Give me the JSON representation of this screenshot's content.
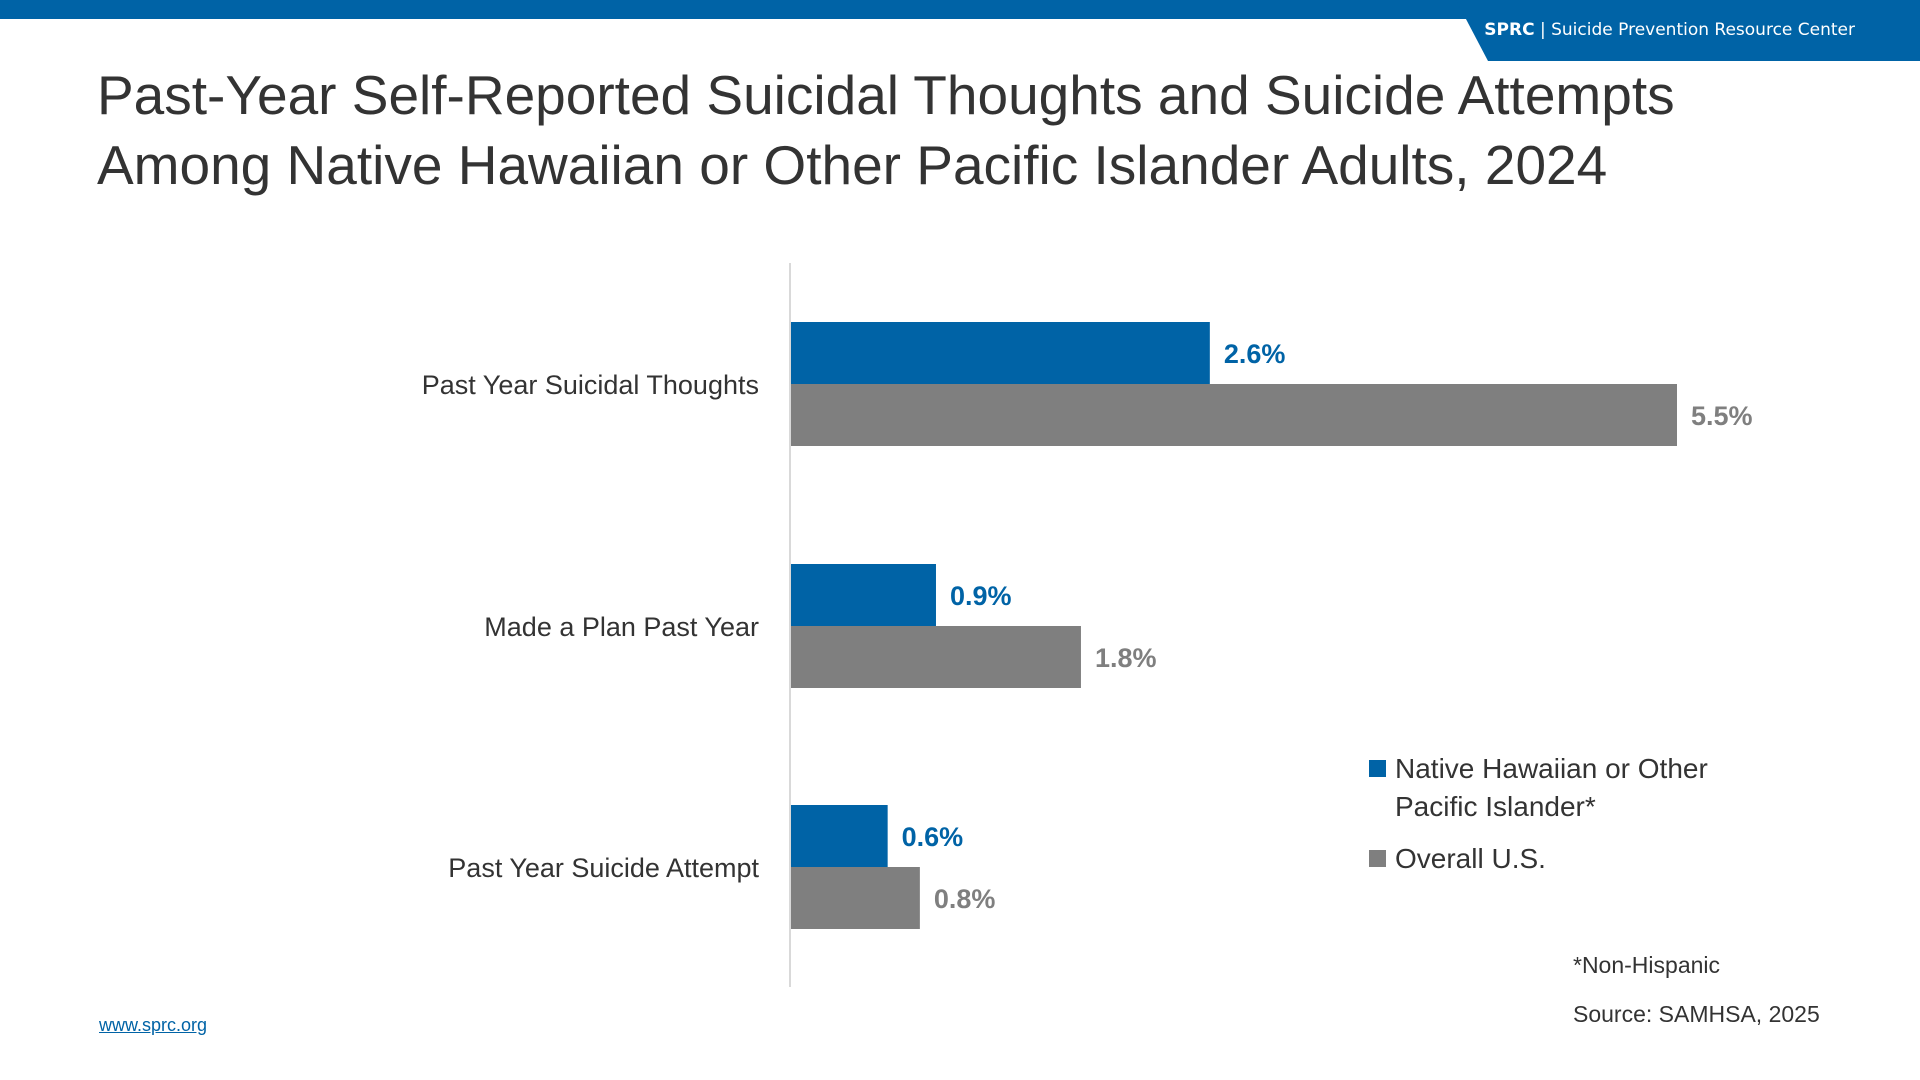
{
  "header": {
    "brand_short": "SPRC",
    "separator": "|",
    "brand_full": "Suicide Prevention Resource Center"
  },
  "title_line1": "Past-Year Self-Reported Suicidal Thoughts and Suicide Attempts",
  "title_line2": "Among Native Hawaiian or Other Pacific Islander Adults, 2024",
  "colors": {
    "nhopi": "#0063a6",
    "overall": "#7f7f7f"
  },
  "chart_data": {
    "type": "bar",
    "orientation": "horizontal",
    "title": "Past-Year Self-Reported Suicidal Thoughts and Suicide Attempts Among Native Hawaiian or Other Pacific Islander Adults, 2024",
    "categories": [
      "Past Year Suicidal Thoughts",
      "Made a Plan Past Year",
      "Past Year Suicide Attempt"
    ],
    "series": [
      {
        "name": "Native Hawaiian or Other Pacific Islander*",
        "values": [
          2.6,
          0.9,
          0.6
        ],
        "labels": [
          "2.6%",
          "0.9%",
          "0.6%"
        ]
      },
      {
        "name": "Overall U.S.",
        "values": [
          5.5,
          1.8,
          0.8
        ],
        "labels": [
          "5.5%",
          "1.8%",
          "0.8%"
        ]
      }
    ],
    "xlim": [
      0,
      5.5
    ],
    "xlabel": "",
    "ylabel": "",
    "grid": false,
    "legend": "bottom-right"
  },
  "legend": {
    "line1": "Native Hawaiian or Other",
    "line2": "Pacific Islander*",
    "overall": "Overall U.S."
  },
  "footnote": "*Non-Hispanic",
  "source": "Source: SAMHSA, 2025",
  "url": "www.sprc.org"
}
